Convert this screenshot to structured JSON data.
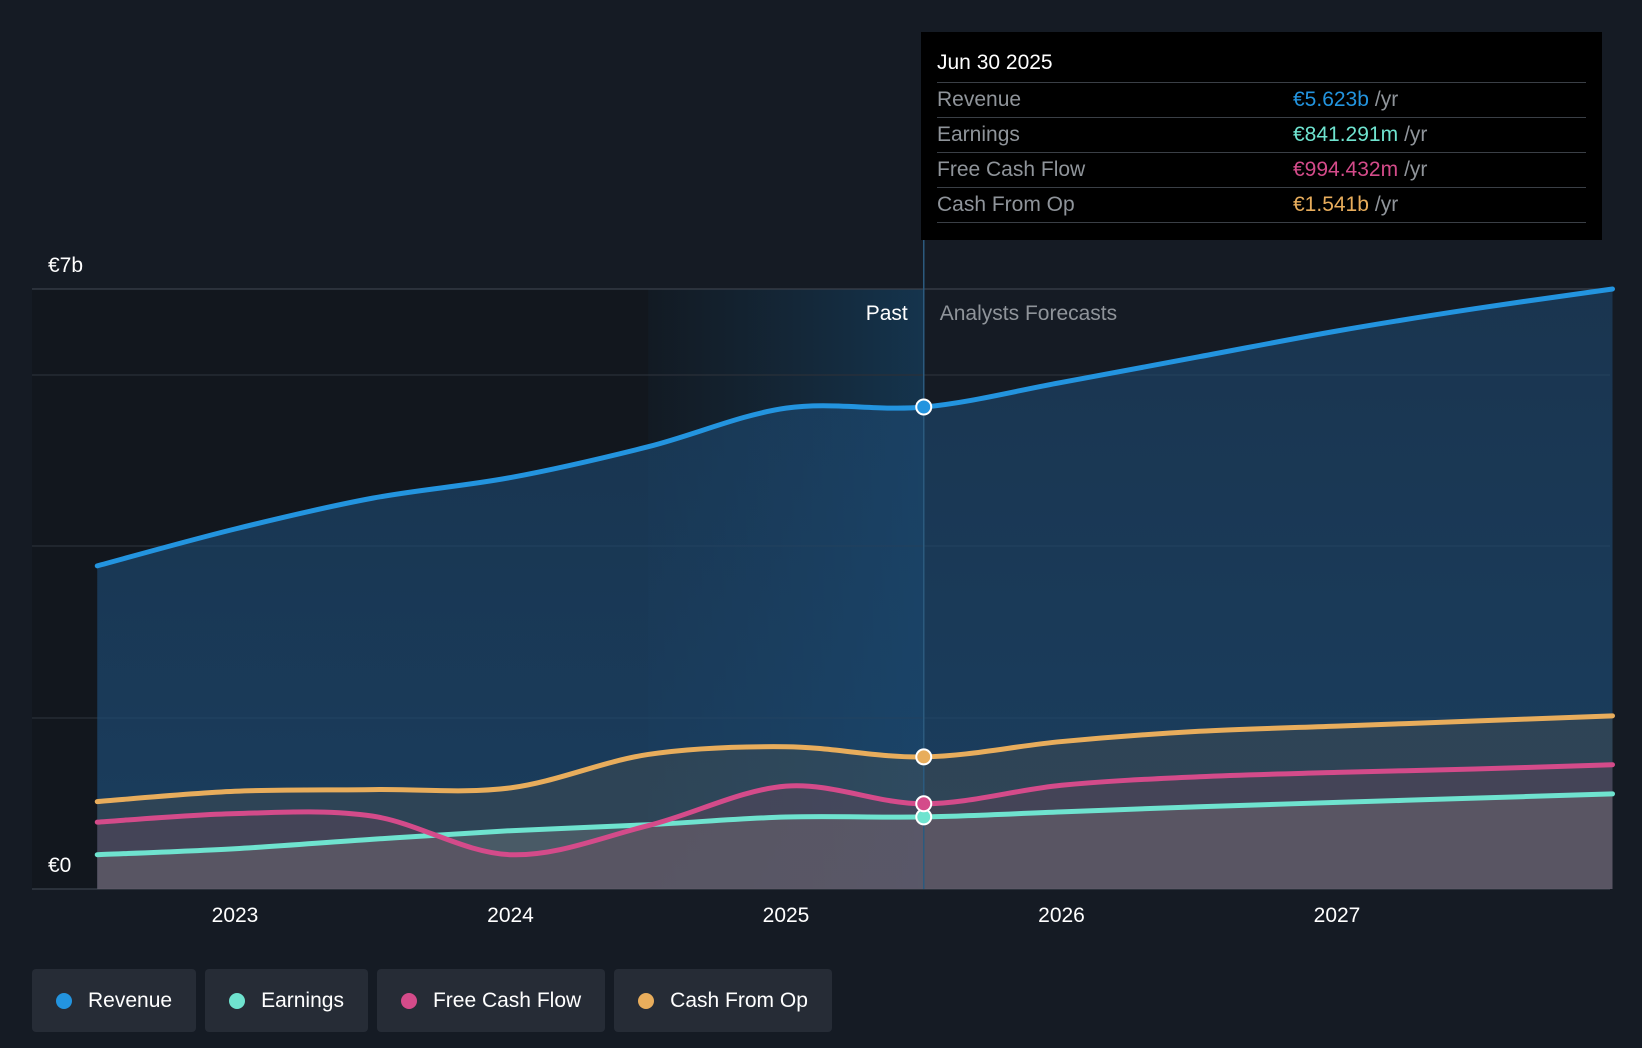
{
  "chart_data": {
    "type": "area",
    "y_axis": {
      "top_label": "€7b",
      "bottom_label": "€0",
      "ylim": [
        0,
        7
      ]
    },
    "x_axis": {
      "ticks": [
        "2023",
        "2024",
        "2025",
        "2026",
        "2027"
      ],
      "tick_values": [
        2023,
        2024,
        2025,
        2026,
        2027
      ],
      "xlim": [
        2022.5,
        2028.0
      ]
    },
    "divider": {
      "x": 2025.5,
      "past_label": "Past",
      "forecast_label": "Analysts Forecasts",
      "highlight_start": 2024.5
    },
    "series": [
      {
        "name": "Revenue",
        "color": "#2394df",
        "points": [
          [
            2022.5,
            3.77
          ],
          [
            2023.0,
            4.2
          ],
          [
            2023.5,
            4.56
          ],
          [
            2024.0,
            4.8
          ],
          [
            2024.5,
            5.16
          ],
          [
            2025.0,
            5.61
          ],
          [
            2025.5,
            5.623
          ],
          [
            2026.0,
            5.91
          ],
          [
            2026.5,
            6.21
          ],
          [
            2027.0,
            6.51
          ],
          [
            2027.5,
            6.77
          ],
          [
            2028.0,
            7.0
          ]
        ]
      },
      {
        "name": "Earnings",
        "color": "#6fe3cf",
        "points": [
          [
            2022.5,
            0.4
          ],
          [
            2023.0,
            0.47
          ],
          [
            2023.5,
            0.58
          ],
          [
            2024.0,
            0.68
          ],
          [
            2024.5,
            0.75
          ],
          [
            2025.0,
            0.84
          ],
          [
            2025.5,
            0.841
          ],
          [
            2026.0,
            0.9
          ],
          [
            2026.5,
            0.96
          ],
          [
            2027.0,
            1.01
          ],
          [
            2027.5,
            1.06
          ],
          [
            2028.0,
            1.11
          ]
        ]
      },
      {
        "name": "Free Cash Flow",
        "color": "#d44b8a",
        "points": [
          [
            2022.5,
            0.78
          ],
          [
            2023.0,
            0.88
          ],
          [
            2023.5,
            0.85
          ],
          [
            2024.0,
            0.4
          ],
          [
            2024.5,
            0.74
          ],
          [
            2025.0,
            1.2
          ],
          [
            2025.5,
            0.994
          ],
          [
            2026.0,
            1.21
          ],
          [
            2026.5,
            1.31
          ],
          [
            2027.0,
            1.36
          ],
          [
            2027.5,
            1.4
          ],
          [
            2028.0,
            1.45
          ]
        ]
      },
      {
        "name": "Cash From Op",
        "color": "#e8ad5c",
        "points": [
          [
            2022.5,
            1.02
          ],
          [
            2023.0,
            1.14
          ],
          [
            2023.5,
            1.16
          ],
          [
            2024.0,
            1.18
          ],
          [
            2024.5,
            1.57
          ],
          [
            2025.0,
            1.66
          ],
          [
            2025.5,
            1.541
          ],
          [
            2026.0,
            1.72
          ],
          [
            2026.5,
            1.84
          ],
          [
            2027.0,
            1.9
          ],
          [
            2027.5,
            1.96
          ],
          [
            2028.0,
            2.02
          ]
        ]
      }
    ]
  },
  "tooltip": {
    "date": "Jun 30 2025",
    "rows": [
      {
        "label": "Revenue",
        "value": "€5.623b",
        "unit": "/yr",
        "color": "#2394df"
      },
      {
        "label": "Earnings",
        "value": "€841.291m",
        "unit": "/yr",
        "color": "#6fe3cf"
      },
      {
        "label": "Free Cash Flow",
        "value": "€994.432m",
        "unit": "/yr",
        "color": "#d44b8a"
      },
      {
        "label": "Cash From Op",
        "value": "€1.541b",
        "unit": "/yr",
        "color": "#e8ad5c"
      }
    ]
  },
  "legend": [
    {
      "label": "Revenue",
      "color": "#2394df"
    },
    {
      "label": "Earnings",
      "color": "#6fe3cf"
    },
    {
      "label": "Free Cash Flow",
      "color": "#d44b8a"
    },
    {
      "label": "Cash From Op",
      "color": "#e8ad5c"
    }
  ]
}
